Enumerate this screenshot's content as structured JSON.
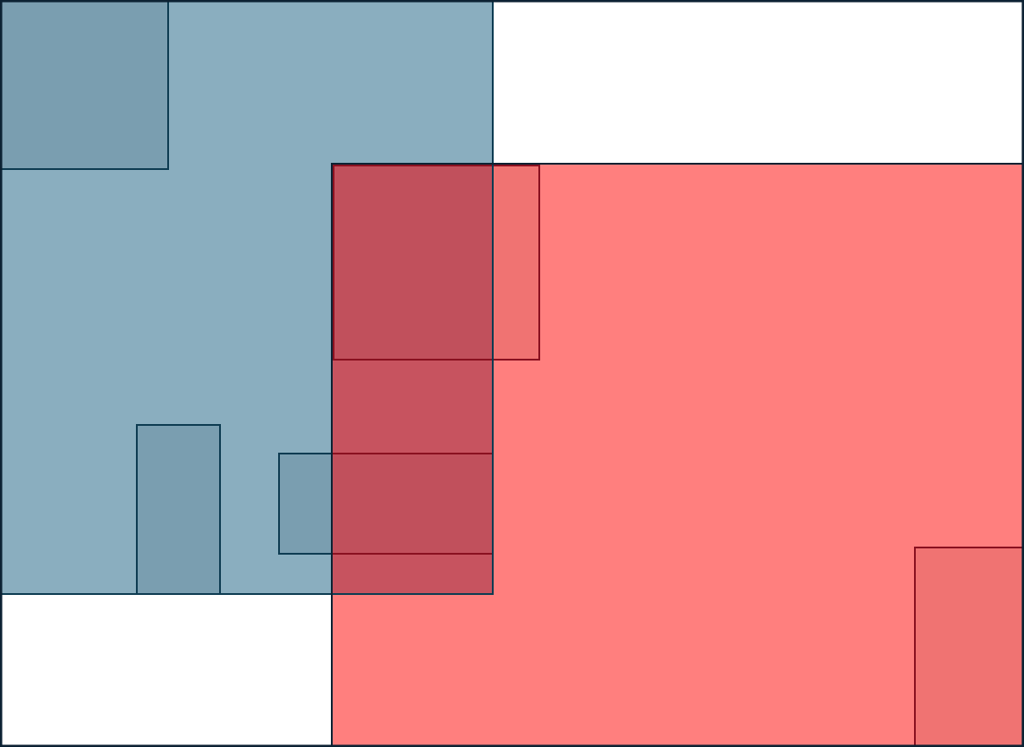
{
  "colors": {
    "background": "#ffffff",
    "frame_stroke": "#0c2233",
    "blue_fill": "#8aaebf",
    "blue_stroke": "#0e3c52",
    "blue_overlay": "#7a9eb0",
    "red_fill": "#ff7f7e",
    "red_stroke": "#8a1120",
    "red_overlay_light": "#f07372",
    "red_overlay_dark": "#c1505c",
    "purple_overlap": "#c7535f"
  },
  "groups": [
    {
      "name": "blue-region",
      "color_key": "blue_fill"
    },
    {
      "name": "red-region",
      "color_key": "red_fill"
    }
  ]
}
